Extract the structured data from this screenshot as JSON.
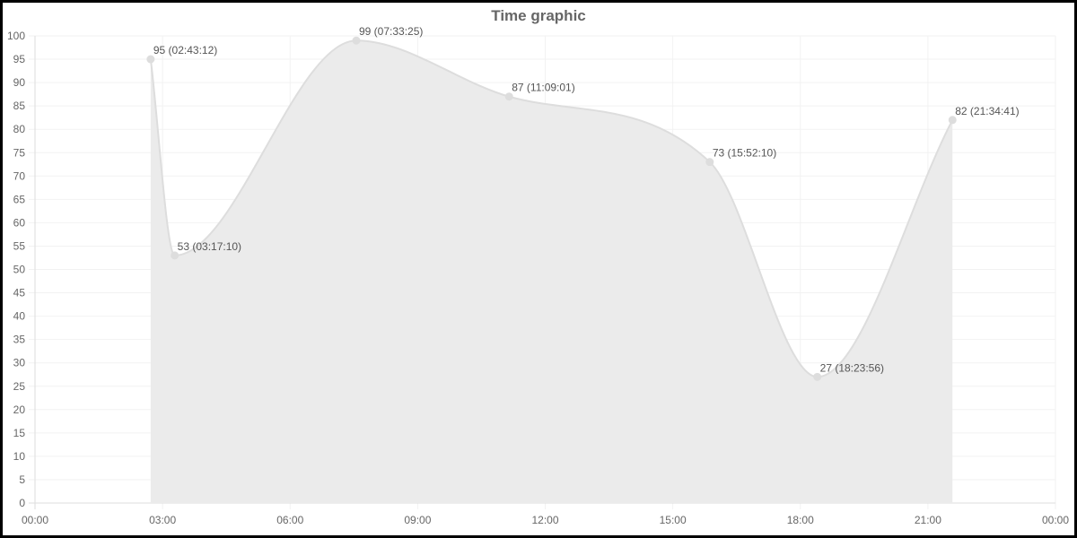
{
  "chart_data": {
    "type": "area",
    "title": "Time graphic",
    "xlabel": "",
    "ylabel": "",
    "grid": true,
    "legend": "none",
    "x_axis": {
      "type": "time",
      "min": "00:00",
      "max": "00:00",
      "ticks": [
        "00:00",
        "03:00",
        "06:00",
        "09:00",
        "12:00",
        "15:00",
        "18:00",
        "21:00",
        "00:00"
      ]
    },
    "y_axis": {
      "min": 0,
      "max": 100,
      "step": 5,
      "ticks": [
        "0",
        "5",
        "10",
        "15",
        "20",
        "25",
        "30",
        "35",
        "40",
        "45",
        "50",
        "55",
        "60",
        "65",
        "70",
        "75",
        "80",
        "85",
        "90",
        "95",
        "100"
      ]
    },
    "points": [
      {
        "time": "02:43:12",
        "value": 95,
        "label": "95 (02:43:12)"
      },
      {
        "time": "03:17:10",
        "value": 53,
        "label": "53 (03:17:10)"
      },
      {
        "time": "07:33:25",
        "value": 99,
        "label": "99 (07:33:25)"
      },
      {
        "time": "11:09:01",
        "value": 87,
        "label": "87 (11:09:01)"
      },
      {
        "time": "15:52:10",
        "value": 73,
        "label": "73 (15:52:10)"
      },
      {
        "time": "18:23:56",
        "value": 27,
        "label": "27 (18:23:56)"
      },
      {
        "time": "21:34:41",
        "value": 82,
        "label": "82 (21:34:41)"
      }
    ],
    "colors": {
      "line": "#dddddd",
      "fill": "#ebebeb",
      "grid": "#f2f2f2",
      "axis": "#dddddd",
      "text": "#666666"
    }
  }
}
